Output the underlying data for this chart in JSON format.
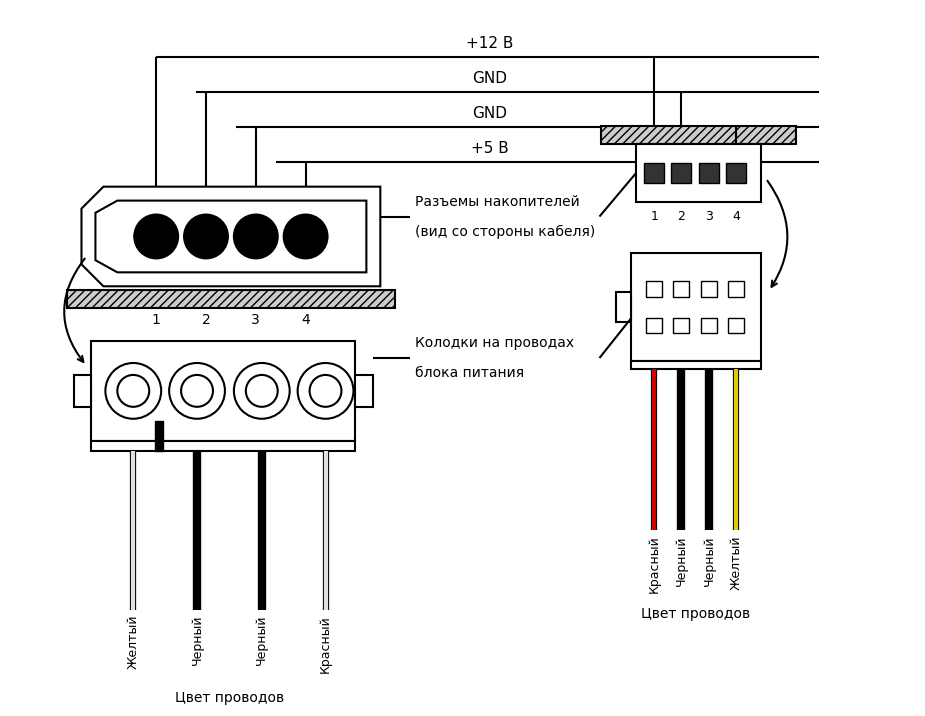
{
  "bg_color": "#ffffff",
  "line_color": "#000000",
  "voltage_labels": [
    "+12 В",
    "GND",
    "GND",
    "+5 В"
  ],
  "pin_numbers_left": [
    "1",
    "2",
    "3",
    "4"
  ],
  "pin_numbers_right": [
    "1",
    "2",
    "3",
    "4"
  ],
  "wire_colors_left": [
    "#e0e0e0",
    "#111111",
    "#111111",
    "#e0e0e0"
  ],
  "wire_colors_right": [
    "#cc0000",
    "#111111",
    "#111111",
    "#ddcc00"
  ],
  "wire_labels_left": [
    "Желтый",
    "Черный",
    "Черный",
    "Красный"
  ],
  "wire_labels_right": [
    "Красный",
    "Черный",
    "Черный",
    "Желтый"
  ],
  "label_tsvet_left": "Цвет проводов",
  "label_tsvet_right": "Цвет проводов",
  "label_razyem1": "Разъемы накопителей",
  "label_razyem2": "(вид со стороны кабеля)",
  "label_kolodki1": "Колодки на проводах",
  "label_kolodki2": "блока питания"
}
